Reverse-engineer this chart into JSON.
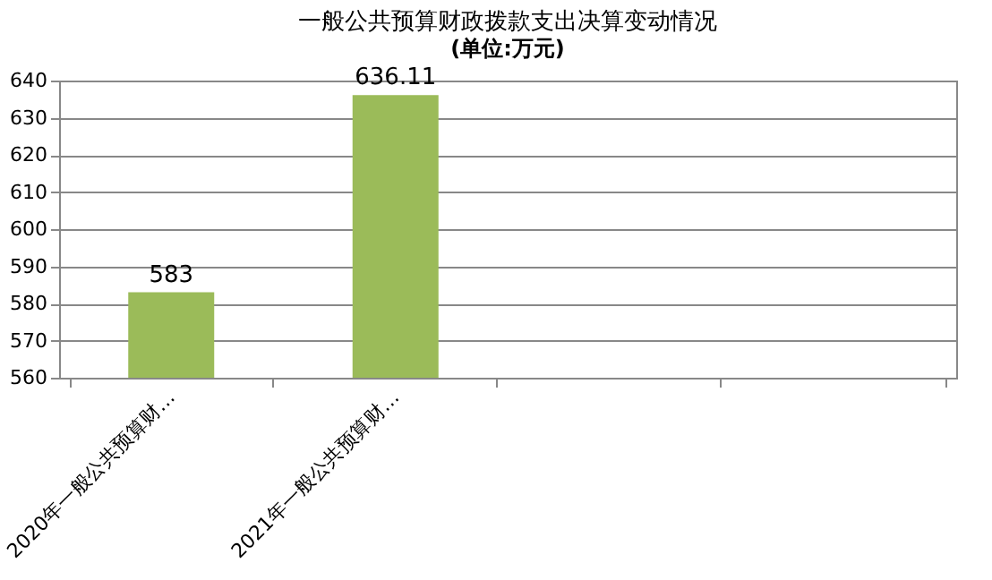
{
  "chart_data": {
    "type": "bar",
    "title": "一般公共预算财政拨款支出决算变动情况",
    "subtitle": "(单位:万元)",
    "categories": [
      "2020年一般公共预算财…",
      "2021年一般公共预算财…",
      null,
      null
    ],
    "values": [
      583,
      636.11,
      null,
      null
    ],
    "color": "#9bbb59",
    "ylim": [
      560,
      640
    ],
    "yticks": [
      560,
      570,
      580,
      590,
      600,
      610,
      620,
      630,
      640
    ],
    "grid": "y",
    "data_labels": true
  }
}
